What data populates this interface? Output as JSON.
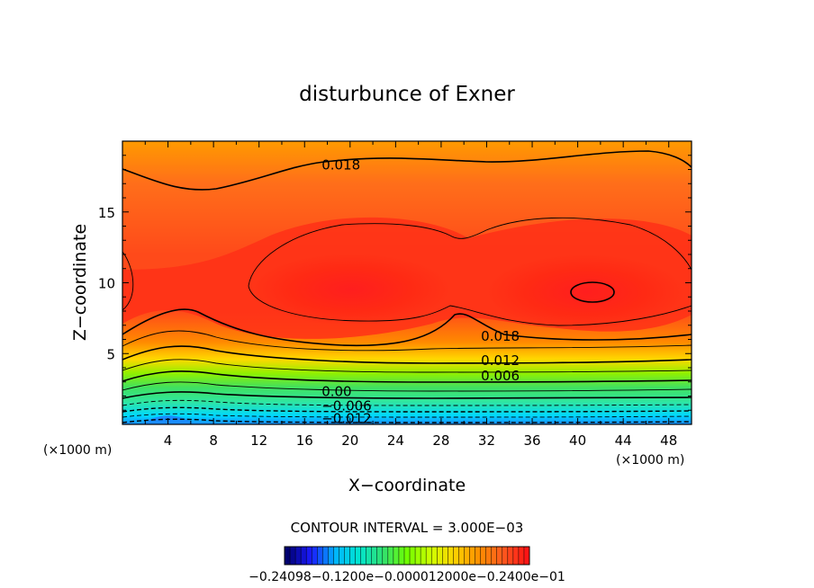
{
  "chart_data": {
    "type": "contour",
    "title": "disturbunce of Exner",
    "xlabel": "X−coordinate",
    "ylabel": "Z−coordinate",
    "x_unit_left": "(×1000 m)",
    "x_unit_right": "(×1000 m)",
    "xlim": [
      0,
      50
    ],
    "ylim": [
      0,
      20
    ],
    "x_ticks": [
      "4",
      "8",
      "12",
      "16",
      "20",
      "24",
      "28",
      "32",
      "36",
      "40",
      "44",
      "48"
    ],
    "x_tick_values": [
      4,
      8,
      12,
      16,
      20,
      24,
      28,
      32,
      36,
      40,
      44,
      48
    ],
    "y_ticks": [
      "5",
      "10",
      "15"
    ],
    "y_tick_values": [
      5,
      10,
      15
    ],
    "contour_interval_label": "CONTOUR INTERVAL = 3.000E−03",
    "contour_interval": 0.003,
    "contour_labels": [
      {
        "text": "0.018",
        "x": 17.5,
        "y": 18.0
      },
      {
        "text": "0.018",
        "x": 31.5,
        "y": 5.9
      },
      {
        "text": "0.012",
        "x": 31.5,
        "y": 4.2
      },
      {
        "text": "0.006",
        "x": 31.5,
        "y": 3.1
      },
      {
        "text": "0.00",
        "x": 17.5,
        "y": 2.0
      },
      {
        "text": "−0.006",
        "x": 17.5,
        "y": 1.0
      },
      {
        "text": "−0.012",
        "x": 17.5,
        "y": 0.1
      }
    ],
    "colorbar_label": "−0.24098−0.1200e−0.000012000e−0.2400e−01",
    "colormap": [
      "#000070",
      "#1b1bff",
      "#00b5ff",
      "#00e5d0",
      "#30e070",
      "#70ff00",
      "#d0ff00",
      "#ffd000",
      "#ff9000",
      "#ff5a1e",
      "#ff1414"
    ]
  }
}
